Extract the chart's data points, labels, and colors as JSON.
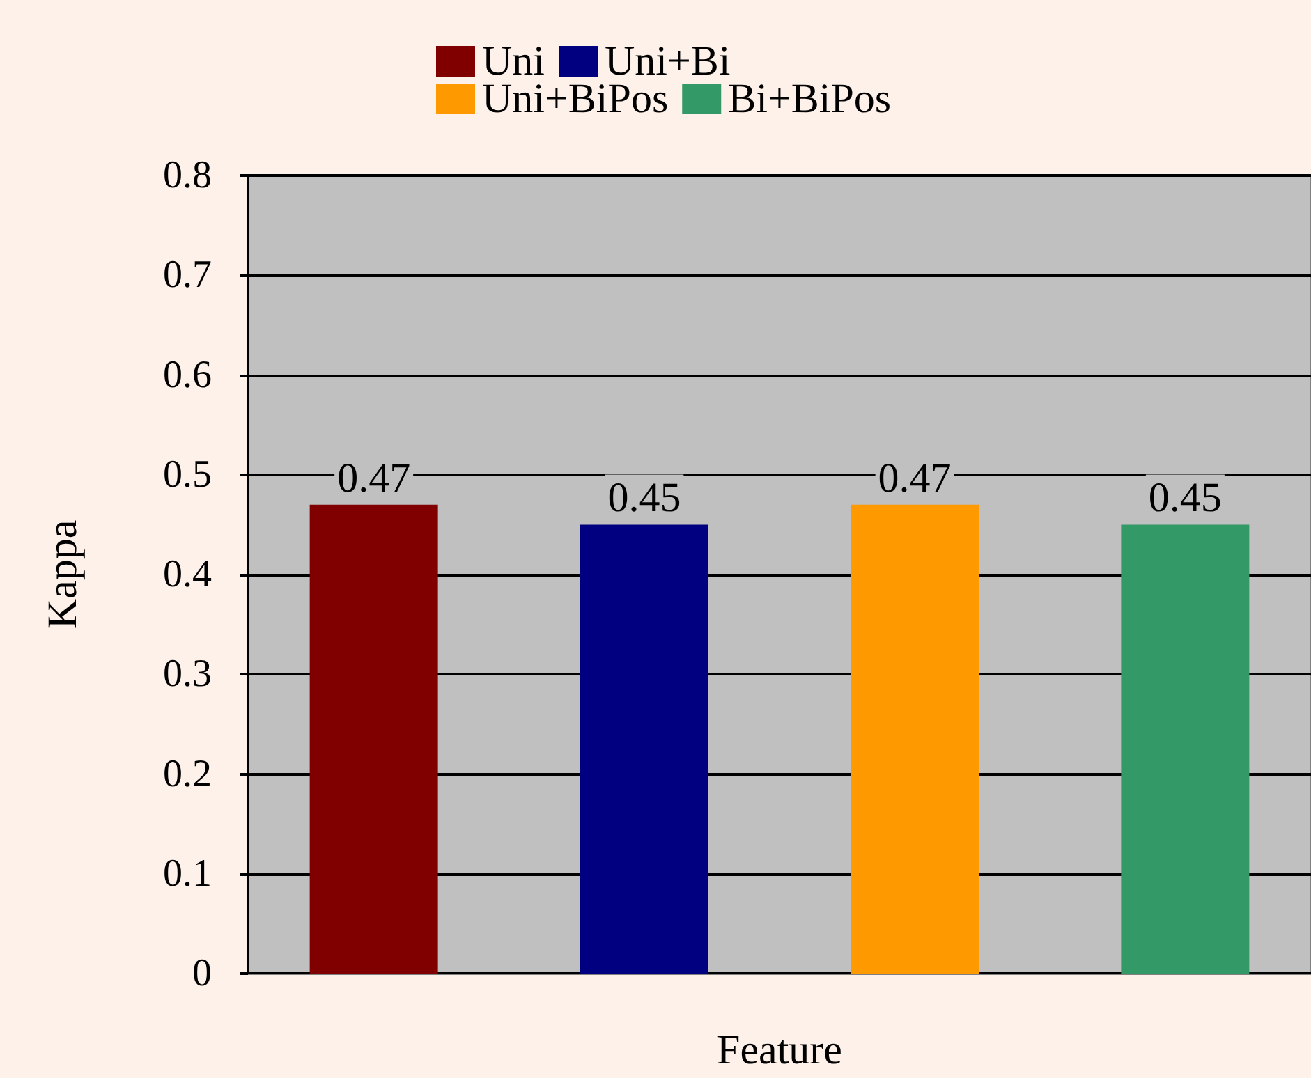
{
  "chart_data": {
    "type": "bar",
    "xlabel": "Feature",
    "ylabel": "Kappa",
    "categories": [
      null
    ],
    "series": [
      {
        "name": "Uni",
        "color": "#800000",
        "values": [
          0.47
        ]
      },
      {
        "name": "Uni+Bi",
        "color": "#000080",
        "values": [
          0.45
        ]
      },
      {
        "name": "Uni+BiPos",
        "color": "#ff9900",
        "values": [
          0.47
        ]
      },
      {
        "name": "Bi+BiPos",
        "color": "#339966",
        "values": [
          0.45
        ]
      }
    ],
    "ylim": [
      0,
      0.8
    ],
    "yticks": [
      0,
      0.1,
      0.2,
      0.3,
      0.4,
      0.5,
      0.6,
      0.7,
      0.8
    ],
    "grid": "y",
    "legend": "top",
    "data_labels": true
  }
}
